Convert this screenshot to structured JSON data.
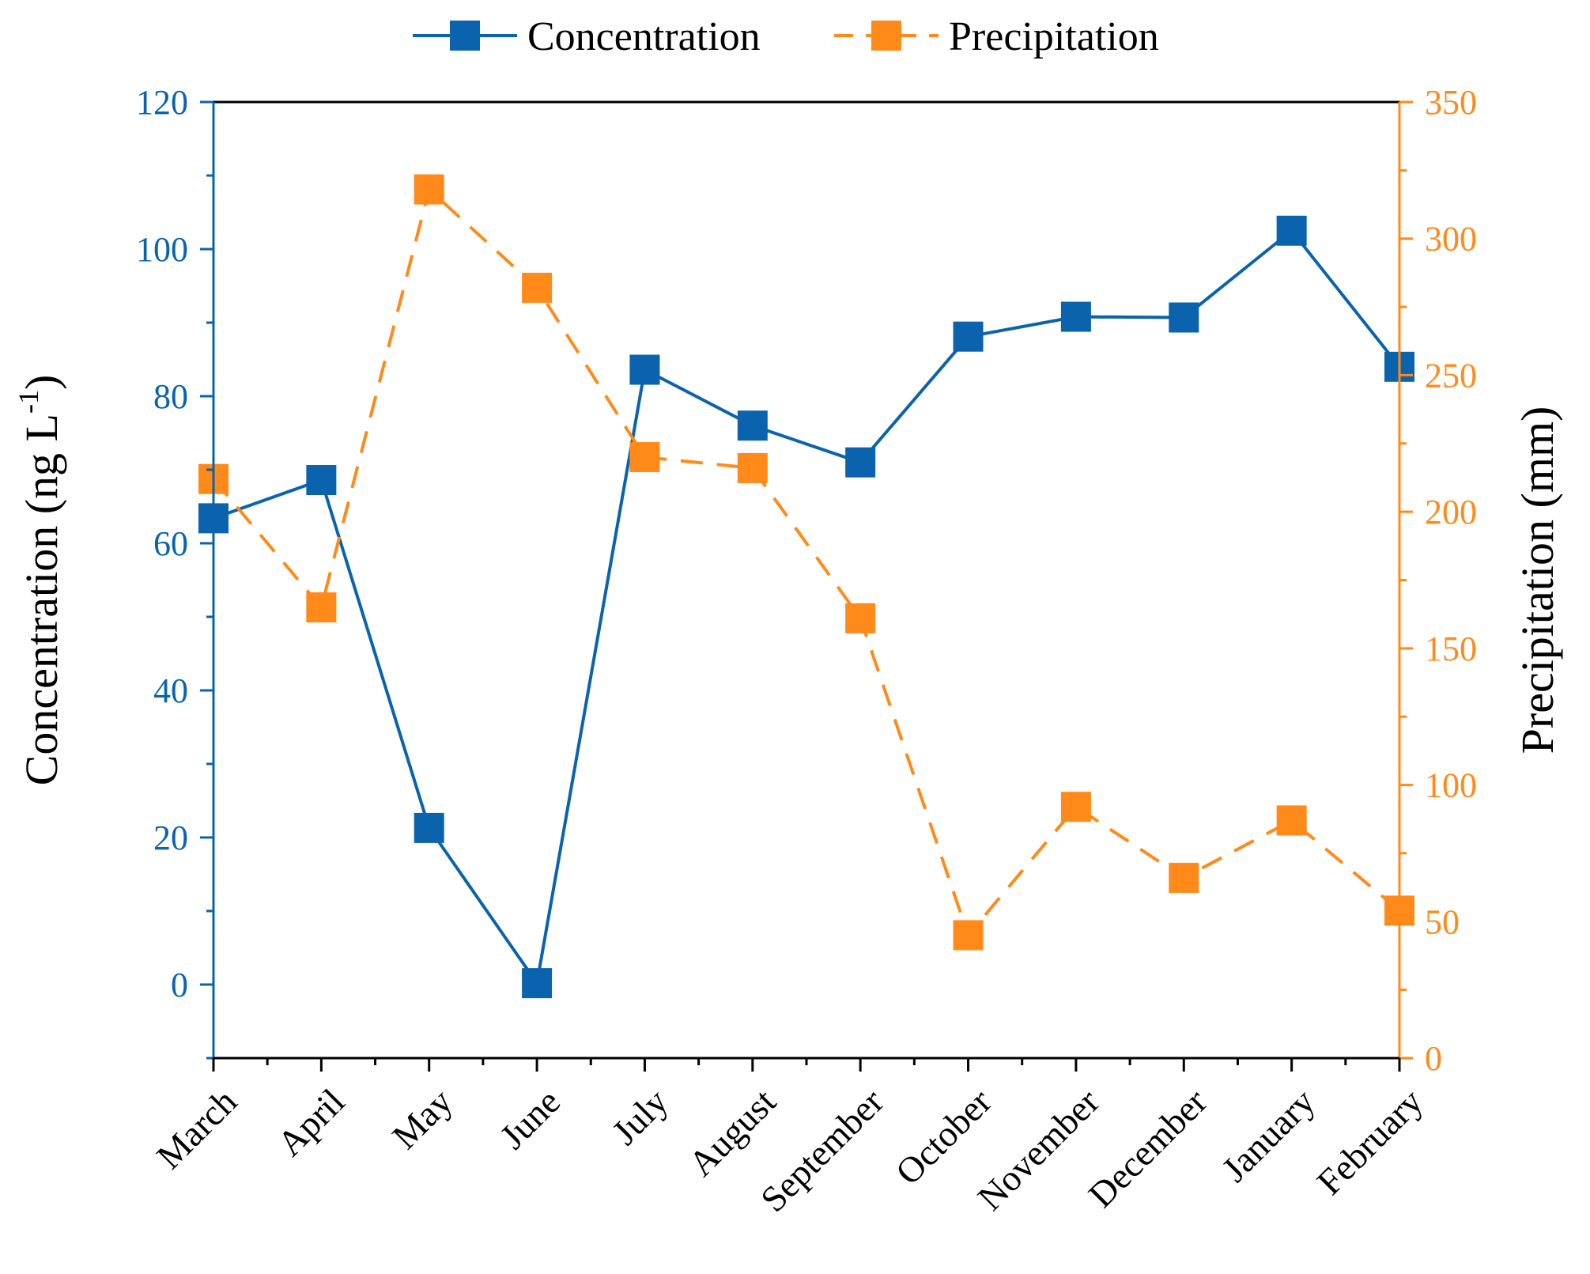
{
  "chart_data": {
    "type": "line",
    "categories": [
      "March",
      "April",
      "May",
      "June",
      "July",
      "August",
      "September",
      "October",
      "November",
      "December",
      "January",
      "February"
    ],
    "series": [
      {
        "name": "Concentration",
        "axis": "left",
        "color": "#0a63ac",
        "line_style": "solid",
        "marker": "square",
        "values": [
          63.4,
          68.6,
          21.3,
          0.2,
          83.6,
          76.0,
          71.0,
          88.1,
          90.8,
          90.7,
          102.5,
          84.0
        ]
      },
      {
        "name": "Precipitation",
        "axis": "right",
        "color": "#ff8a19",
        "line_style": "dashed",
        "marker": "square",
        "values": [
          212,
          165,
          318,
          282,
          220,
          216,
          161,
          45,
          92,
          66,
          87,
          54
        ]
      }
    ],
    "y_left": {
      "label_main": "Concentration (ng L",
      "label_sup": "-1",
      "label_close": ")",
      "min": -10,
      "max": 120,
      "ticks": [
        0,
        20,
        40,
        60,
        80,
        100,
        120
      ],
      "tick_labels": [
        "0",
        "20",
        "40",
        "60",
        "80",
        "100",
        "120"
      ],
      "color": "#0a63ac"
    },
    "y_right": {
      "label": "Precipitation (mm)",
      "min": 0,
      "max": 350,
      "ticks": [
        0,
        50,
        100,
        150,
        200,
        250,
        300,
        350
      ],
      "tick_labels": [
        "0",
        "50",
        "100",
        "150",
        "200",
        "250",
        "300",
        "350"
      ],
      "color": "#ff8a19"
    },
    "legend": {
      "position": "top-center",
      "entries": [
        "Concentration",
        "Precipitation"
      ]
    }
  }
}
